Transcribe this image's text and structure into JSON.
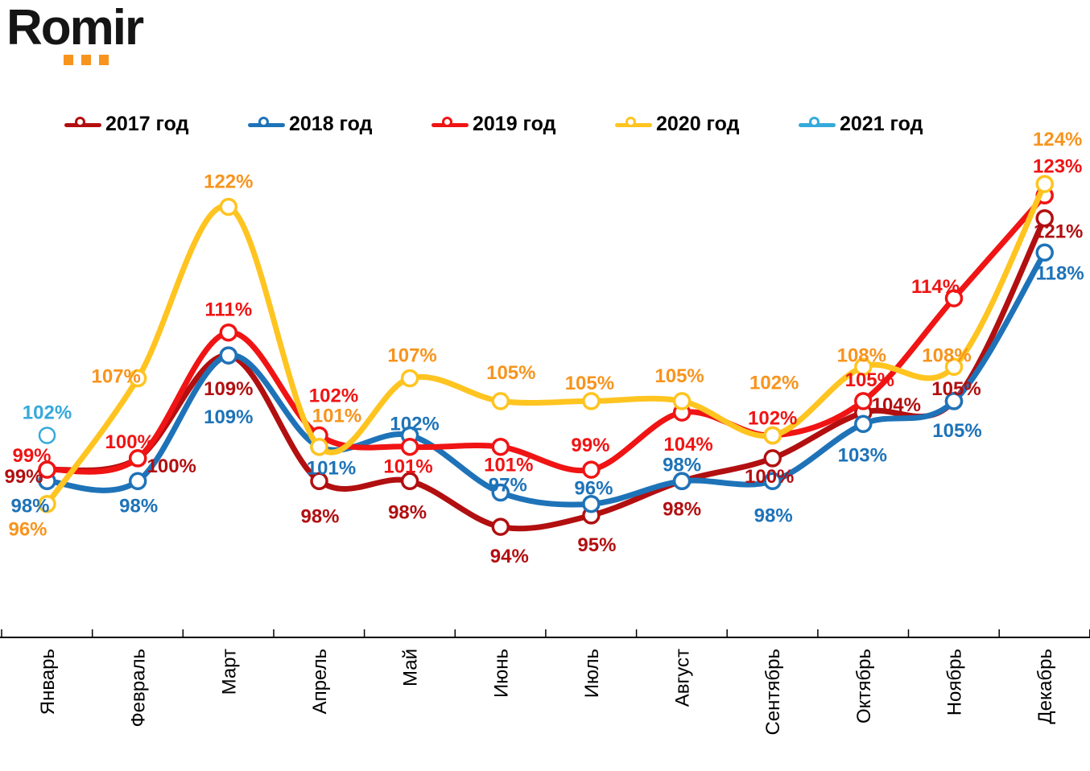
{
  "logo": {
    "text": "Romir"
  },
  "chart_data": {
    "type": "line",
    "title": "",
    "xlabel": "",
    "ylabel": "",
    "grid": false,
    "legend_position": "top",
    "data_label_format": "{value}%",
    "x_axis_visible": true,
    "y_axis_visible": false,
    "ylim": [
      84,
      130
    ],
    "categories": [
      "Январь",
      "Февраль",
      "Март",
      "Апрель",
      "Май",
      "Июнь",
      "Июль",
      "Август",
      "Сентябрь",
      "Октябрь",
      "Ноябрь",
      "Декабрь"
    ],
    "series": [
      {
        "name": "2017 год",
        "color": "#B20F10",
        "label_color": "#B20F10",
        "values": [
          99,
          100,
          109,
          98,
          98,
          94,
          95,
          98,
          100,
          104,
          105,
          121
        ]
      },
      {
        "name": "2018 год",
        "color": "#1E73B8",
        "label_color": "#1E73B8",
        "values": [
          98,
          98,
          109,
          101,
          102,
          97,
          96,
          98,
          98,
          103,
          105,
          118
        ]
      },
      {
        "name": "2019 год",
        "color": "#F01414",
        "label_color": "#F01414",
        "values": [
          99,
          100,
          111,
          102,
          101,
          101,
          99,
          104,
          102,
          105,
          114,
          123
        ]
      },
      {
        "name": "2020 год",
        "color": "#FFC420",
        "label_color": "#F7941E",
        "values": [
          96,
          107,
          122,
          101,
          107,
          105,
          105,
          105,
          102,
          108,
          108,
          124
        ]
      },
      {
        "name": "2021 год",
        "color": "#35A9DC",
        "label_color": "#35A9DC",
        "values": [
          102,
          null,
          null,
          null,
          null,
          null,
          null,
          null,
          null,
          null,
          null,
          null
        ]
      }
    ]
  }
}
